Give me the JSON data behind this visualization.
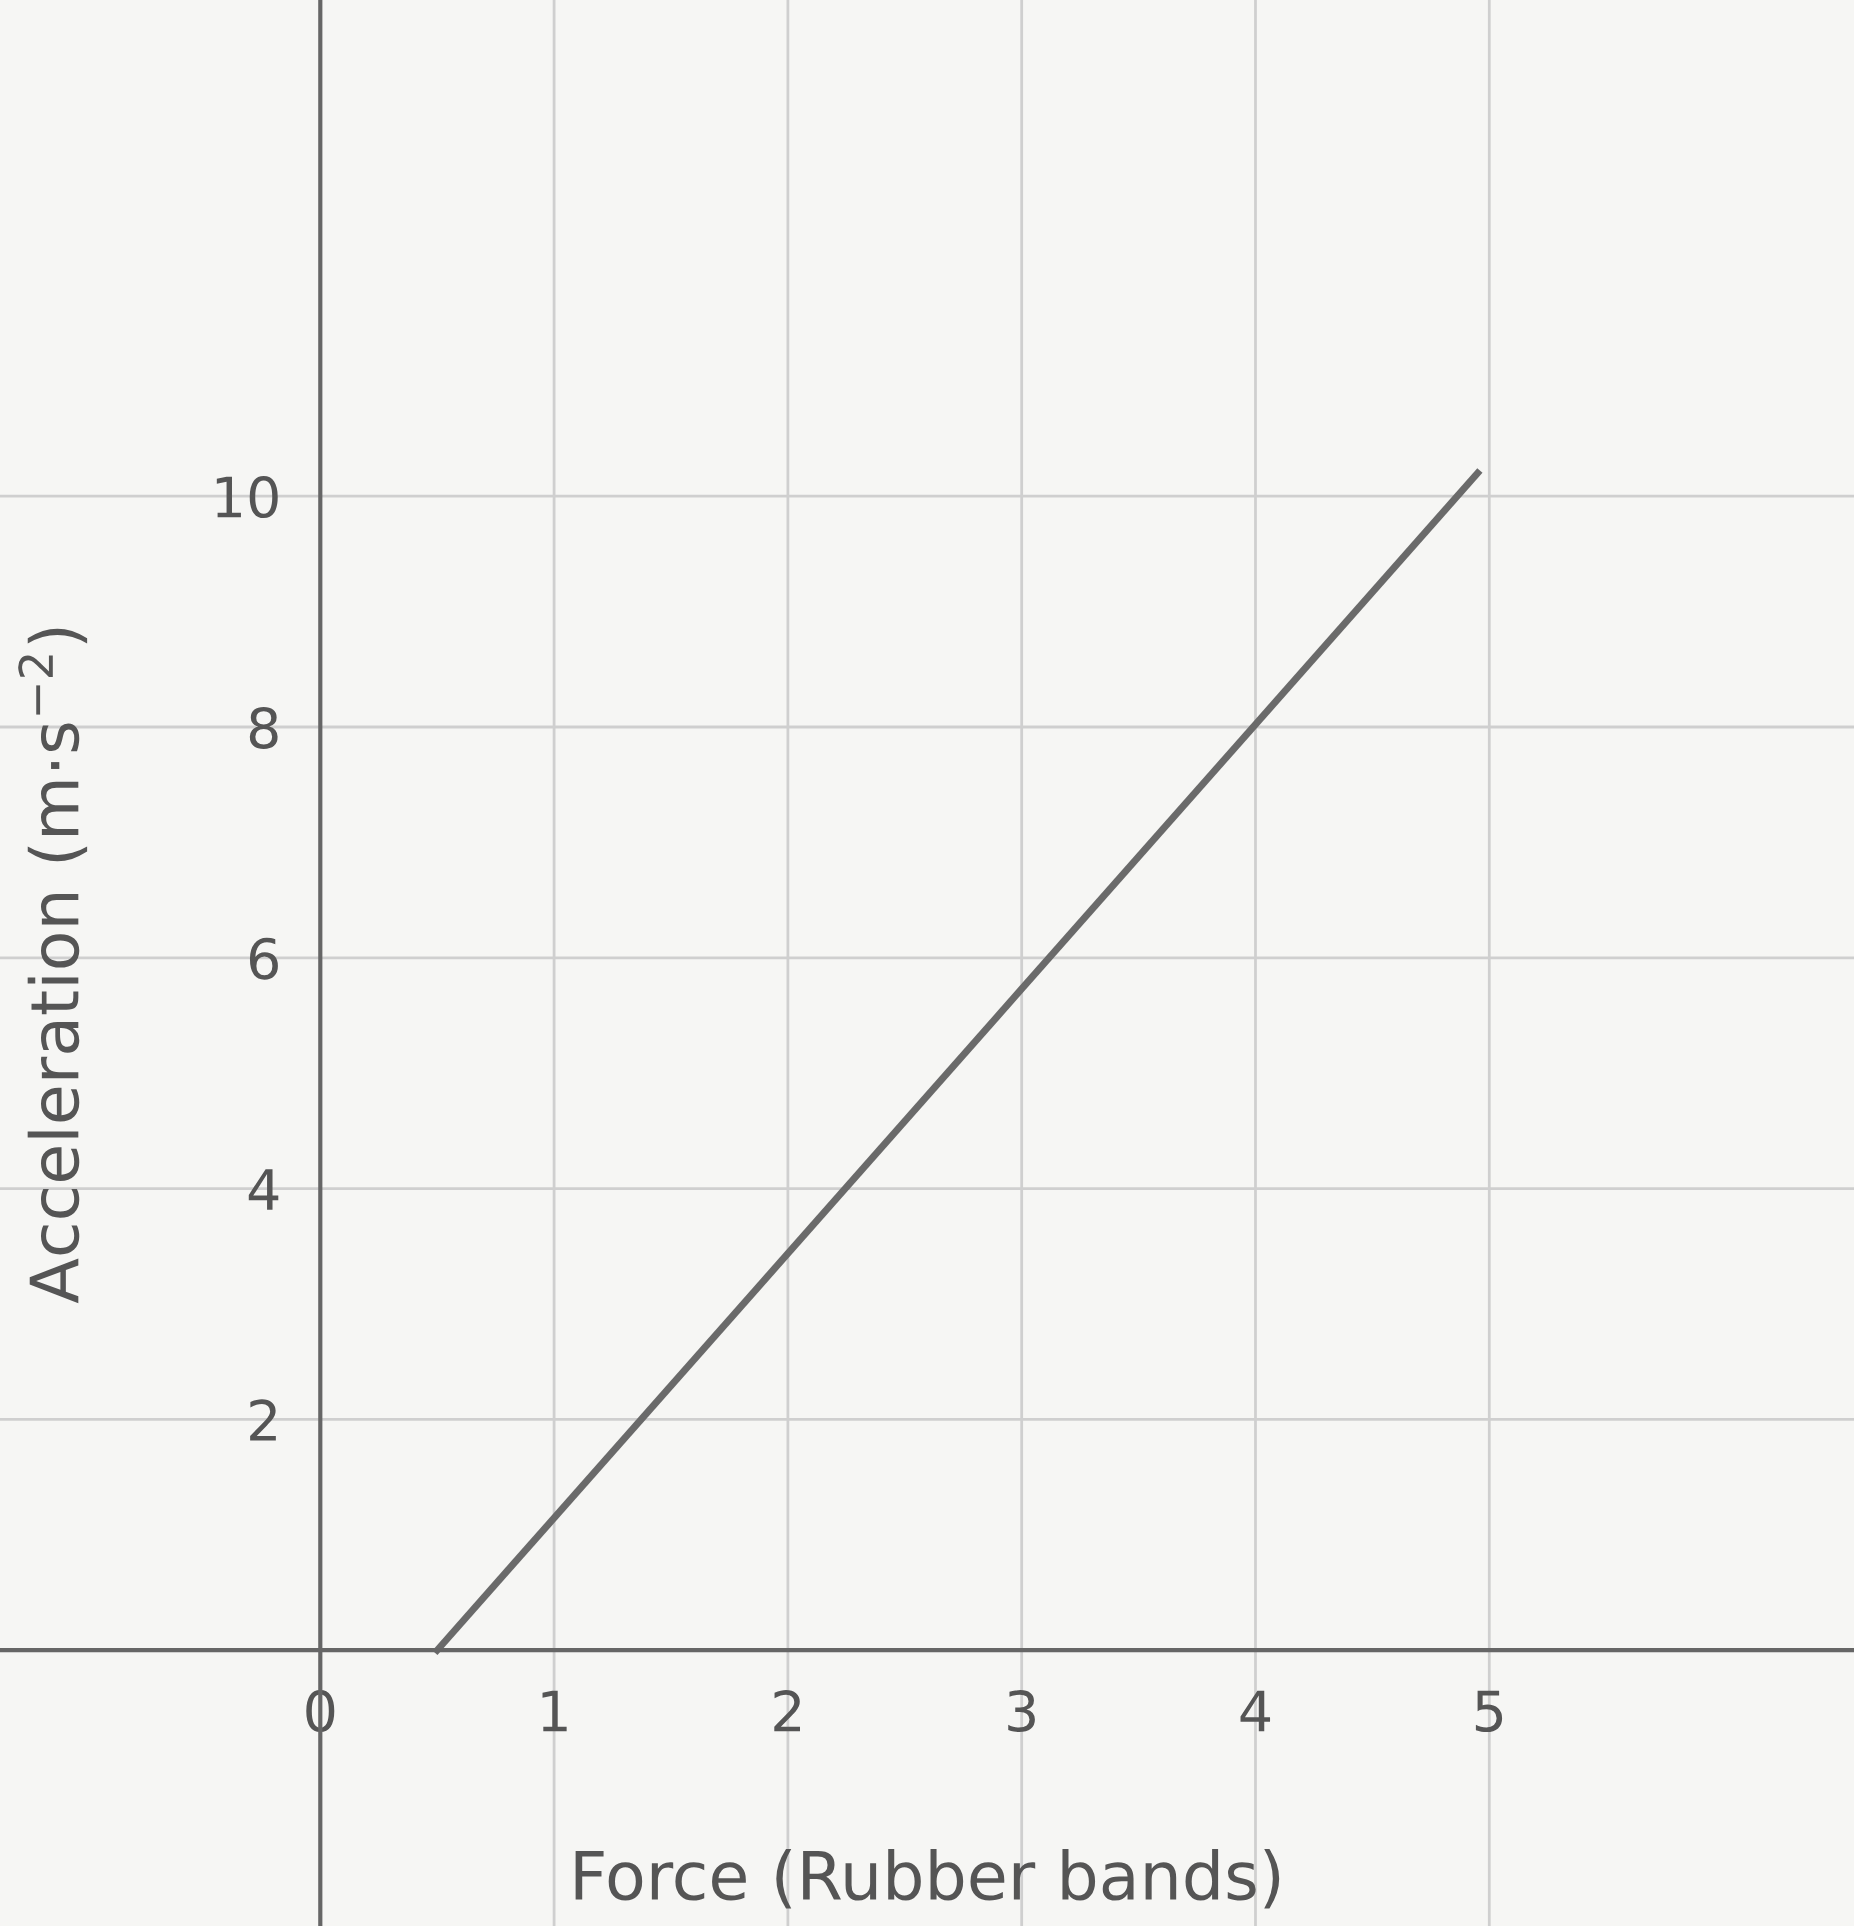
{
  "chart_data": {
    "type": "line",
    "xlabel": "Force (Rubber bands)",
    "ylabel": "Acceleration (m·s$^{−2}$)",
    "x": [
      0.5,
      4.95
    ],
    "series": [
      {
        "color": "#6a6a6a",
        "values": [
          0,
          10.2
        ]
      }
    ],
    "xlim": [
      -1.37,
      6.56
    ],
    "ylim": [
      -2.39,
      14.3
    ],
    "xticks": [
      0,
      1,
      2,
      3,
      4,
      5
    ],
    "yticks": [
      2,
      4,
      6,
      8,
      10
    ],
    "grid": true,
    "marker": "none",
    "line_style": "solid"
  }
}
